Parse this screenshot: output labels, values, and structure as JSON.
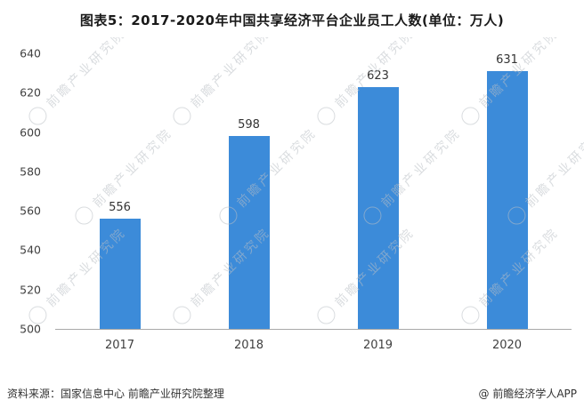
{
  "title": "图表5：2017-2020年中国共享经济平台企业员工人数(单位：万人)",
  "chart_data": {
    "type": "bar",
    "categories": [
      "2017",
      "2018",
      "2019",
      "2020"
    ],
    "values": [
      556,
      598,
      623,
      631
    ],
    "title": "图表5：2017-2020年中国共享经济平台企业员工人数(单位：万人)",
    "xlabel": "",
    "ylabel": "",
    "ylim": [
      500,
      640
    ],
    "yticks": [
      640,
      620,
      600,
      580,
      560,
      540,
      520,
      500
    ],
    "grid": false,
    "legend": "none",
    "bar_color": "#3c8bd9"
  },
  "watermark": {
    "text": "前瞻产业研究院",
    "icon": "qianzhan-logo-circle"
  },
  "footer": {
    "source": "资料来源：国家信息中心 前瞻产业研究院整理",
    "credit": "@ 前瞻经济学人APP"
  }
}
